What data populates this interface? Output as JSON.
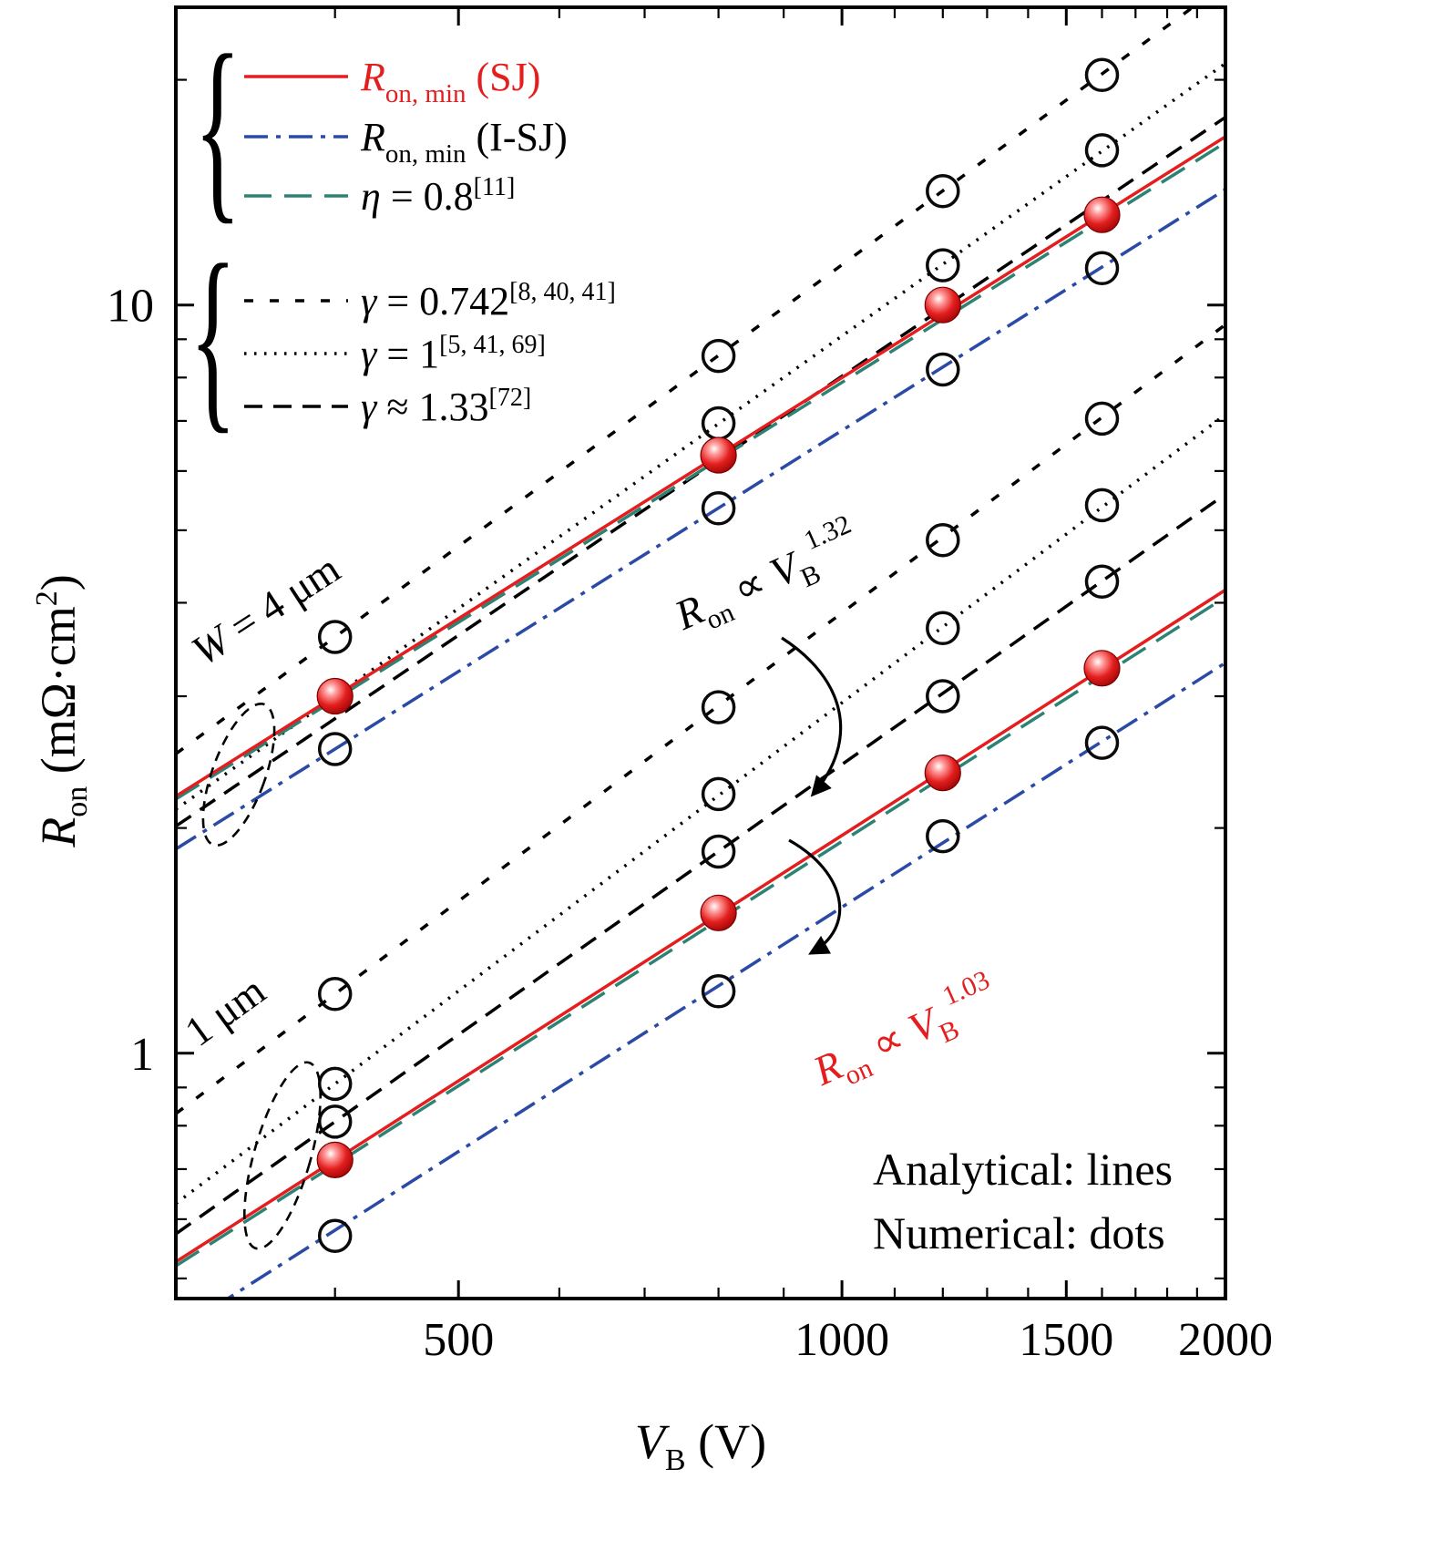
{
  "colors": {
    "sj_red": "#e41e1e",
    "isj_blue": "#2a4aa5",
    "eta_teal": "#2d8373",
    "black": "#000000"
  },
  "legend": {
    "brace": "{",
    "entries": [
      {
        "style": "sj",
        "red": true,
        "var": "R",
        "sub": "on, min",
        "rest": " (SJ)"
      },
      {
        "style": "isj",
        "red": false,
        "var": "R",
        "sub": "on, min",
        "rest": " (I-SJ)"
      },
      {
        "style": "eta",
        "red": false,
        "var": "η",
        "rest": " = 0.8",
        "ref": "[11]"
      },
      {
        "style": "g0742",
        "red": false,
        "var": "γ",
        "rest": " = 0.742",
        "ref": "[8, 40, 41]"
      },
      {
        "style": "g1",
        "red": false,
        "var": "γ",
        "rest": " = 1",
        "ref": "[5, 41, 69]"
      },
      {
        "style": "g133",
        "red": false,
        "var": "γ",
        "rest": " ≈ 1.33",
        "ref": "[72]"
      }
    ]
  },
  "annotations": {
    "w4": {
      "var": "W",
      "rest": " = 4 μm"
    },
    "w1": {
      "label": "1 μm"
    },
    "prop_upper": {
      "r": "R",
      "rsub": "on",
      "mid": " ∝ ",
      "v": "V",
      "vsub": "B",
      "exp": "1.32"
    },
    "prop_lower": {
      "r": "R",
      "rsub": "on",
      "mid": " ∝ ",
      "v": "V",
      "vsub": "B",
      "exp": "1.03"
    },
    "analytical": "Analytical: lines",
    "numerical": "Numerical: dots"
  },
  "chart_data": {
    "type": "line",
    "scales": {
      "x": "log",
      "y": "log"
    },
    "title": "",
    "xlabel": "V_B (V)",
    "ylabel": "R_on (mΩ·cm²)",
    "axes": {
      "x": {
        "min": 300,
        "max": 2000,
        "title": {
          "v": "V",
          "sub": "B",
          "rest": " (V)"
        },
        "major": [
          {
            "v": 500,
            "label": "500"
          },
          {
            "v": 1000,
            "label": "1000"
          },
          {
            "v": 1500,
            "label": "1500"
          },
          {
            "v": 2000,
            "label": "2000"
          }
        ],
        "minor": [
          400,
          600,
          700,
          800,
          900,
          1100,
          1200,
          1300,
          1400,
          1600,
          1700,
          1800,
          1900
        ]
      },
      "y": {
        "min": 0.47,
        "max": 25,
        "title": {
          "v": "R",
          "sub": "on",
          "rest": " (mΩ·cm",
          "sup": "2",
          "close": ")"
        },
        "major": [
          {
            "v": 1,
            "label": "1"
          },
          {
            "v": 10,
            "label": "10"
          }
        ],
        "minor": [
          0.5,
          0.6,
          0.7,
          0.8,
          0.9,
          2,
          3,
          4,
          5,
          6,
          7,
          8,
          9,
          20
        ]
      }
    },
    "lines": [
      {
        "id": "gamma0742_W4",
        "group": "W = 4 um",
        "label": "gamma = 0.742",
        "style": "g0742",
        "r_at_400": 3.6,
        "exponent": 1.25
      },
      {
        "id": "gamma1_W4",
        "group": "W = 4 um",
        "label": "gamma = 1",
        "style": "g1",
        "r_at_400": 3.0,
        "exponent": 1.21
      },
      {
        "id": "gamma133_W4",
        "group": "W = 4 um",
        "label": "gamma = 1.33",
        "style": "g133",
        "r_at_400": 2.8,
        "exponent": 1.15
      },
      {
        "id": "eta08_W4",
        "group": "W = 4 um",
        "label": "eta = 0.8",
        "style": "eta",
        "r_at_400": 2.97,
        "exponent": 1.065
      },
      {
        "id": "RonMin_SJ_W4",
        "group": "W = 4 um",
        "label": "Ron,min (SJ)",
        "style": "sj",
        "r_at_400": 3.0,
        "exponent": 1.07
      },
      {
        "id": "RonMin_ISJ_W4",
        "group": "W = 4 um",
        "label": "Ron,min (I-SJ)",
        "style": "isj",
        "r_at_400": 2.55,
        "exponent": 1.07
      },
      {
        "id": "gamma0742_W1",
        "group": "W = 1 um",
        "label": "gamma = 0.742",
        "style": "g0742",
        "r_at_400": 1.2,
        "exponent": 1.28
      },
      {
        "id": "gamma1_W1",
        "group": "W = 1 um",
        "label": "gamma = 1",
        "style": "g1",
        "r_at_400": 0.91,
        "exponent": 1.28
      },
      {
        "id": "gamma133_W1",
        "group": "W = 1 um",
        "label": "gamma = 1.33",
        "style": "g133",
        "r_at_400": 0.81,
        "exponent": 1.2
      },
      {
        "id": "eta08_W1",
        "group": "W = 1 um",
        "label": "eta = 0.8",
        "style": "eta",
        "r_at_400": 0.71,
        "exponent": 1.085
      },
      {
        "id": "RonMin_SJ_W1",
        "group": "W = 1 um",
        "label": "Ron,min (SJ)",
        "style": "sj",
        "r_at_400": 0.72,
        "exponent": 1.09
      },
      {
        "id": "RonMin_ISJ_W1",
        "group": "W = 1 um",
        "label": "Ron,min (I-SJ)",
        "style": "isj",
        "r_at_400": 0.58,
        "exponent": 1.085
      }
    ],
    "scatter_open": [
      {
        "name": "numerical_gamma0742_W4",
        "points": [
          [
            400,
            3.6
          ],
          [
            800,
            8.55
          ],
          [
            1200,
            14.2
          ],
          [
            1600,
            20.3
          ]
        ]
      },
      {
        "name": "numerical_gamma1_W4",
        "points": [
          [
            800,
            6.95
          ],
          [
            1200,
            11.3
          ],
          [
            1600,
            16.1
          ]
        ]
      },
      {
        "name": "numerical_ISJ_W4",
        "points": [
          [
            400,
            2.55
          ],
          [
            800,
            5.35
          ],
          [
            1200,
            8.2
          ],
          [
            1600,
            11.2
          ]
        ]
      },
      {
        "name": "numerical_gamma0742_W1",
        "points": [
          [
            400,
            1.2
          ],
          [
            800,
            2.9
          ],
          [
            1200,
            4.85
          ],
          [
            1600,
            7.05
          ]
        ]
      },
      {
        "name": "numerical_gamma1_W1",
        "points": [
          [
            400,
            0.91
          ],
          [
            800,
            2.22
          ],
          [
            1200,
            3.7
          ],
          [
            1600,
            5.4
          ]
        ]
      },
      {
        "name": "numerical_gamma133_W1",
        "points": [
          [
            400,
            0.81
          ],
          [
            800,
            1.86
          ],
          [
            1200,
            3.0
          ],
          [
            1600,
            4.27
          ]
        ]
      },
      {
        "name": "numerical_ISJ_W1",
        "points": [
          [
            400,
            0.57
          ],
          [
            800,
            1.21
          ],
          [
            1200,
            1.95
          ],
          [
            1600,
            2.6
          ]
        ]
      }
    ],
    "scatter_red": [
      {
        "name": "numerical_SJ_W4",
        "points": [
          [
            400,
            3.0
          ],
          [
            800,
            6.3
          ],
          [
            1200,
            10.0
          ],
          [
            1600,
            13.2
          ]
        ]
      },
      {
        "name": "numerical_SJ_W1",
        "points": [
          [
            400,
            0.72
          ],
          [
            800,
            1.54
          ],
          [
            1200,
            2.37
          ],
          [
            1600,
            3.27
          ]
        ]
      }
    ]
  }
}
